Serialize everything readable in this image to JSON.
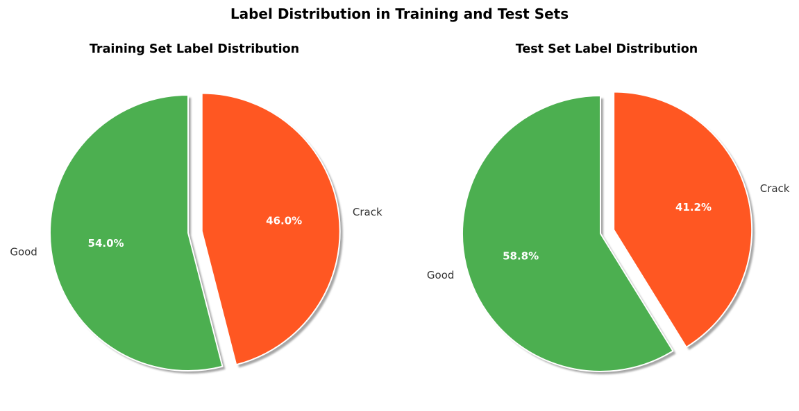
{
  "figure_title": "Label Distribution in Training and Test Sets",
  "colors": {
    "Good": "#4caf50",
    "Crack": "#ff5722",
    "label_text": "#333333",
    "pct_text": "#ffffff",
    "shadow": "#000000"
  },
  "chart_data": [
    {
      "type": "pie",
      "title": "Training Set Label Distribution",
      "labels": [
        "Good",
        "Crack"
      ],
      "values": [
        54.0,
        46.0
      ],
      "pct_labels": [
        "54.0%",
        "46.0%"
      ],
      "exploded": [
        "Crack"
      ],
      "start_angle_deg": 90,
      "direction": "counterclockwise",
      "shadow": true
    },
    {
      "type": "pie",
      "title": "Test Set Label Distribution",
      "labels": [
        "Good",
        "Crack"
      ],
      "values": [
        58.8,
        41.2
      ],
      "pct_labels": [
        "58.8%",
        "41.2%"
      ],
      "exploded": [
        "Crack"
      ],
      "start_angle_deg": 90,
      "direction": "counterclockwise",
      "shadow": true
    }
  ]
}
